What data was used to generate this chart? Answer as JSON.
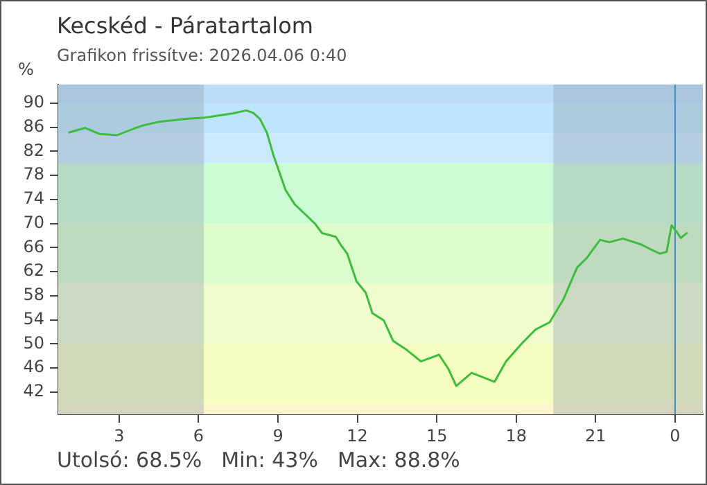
{
  "chart_data": {
    "type": "line",
    "title": "Kecskéd - Páratartalom",
    "subtitle": "Grafikon frissítve: 2026.04.06 0:40",
    "ylabel": "%",
    "x": [
      "2026-04-05T01:05",
      "2026-04-05T01:43",
      "2026-04-05T02:15",
      "2026-04-05T02:56",
      "2026-04-05T03:38",
      "2026-04-05T03:59",
      "2026-04-05T04:30",
      "2026-04-05T05:32",
      "2026-04-05T06:14",
      "2026-04-05T07:17",
      "2026-04-05T07:48",
      "2026-04-05T08:04",
      "2026-04-05T08:19",
      "2026-04-05T08:35",
      "2026-04-05T08:50",
      "2026-04-05T09:01",
      "2026-04-05T09:17",
      "2026-04-05T09:38",
      "2026-04-05T09:58",
      "2026-04-05T10:25",
      "2026-04-05T10:40",
      "2026-04-05T11:11",
      "2026-04-05T11:22",
      "2026-04-05T11:37",
      "2026-04-05T11:58",
      "2026-04-05T12:19",
      "2026-04-05T12:34",
      "2026-04-05T13:00",
      "2026-04-05T13:21",
      "2026-04-05T13:52",
      "2026-04-05T14:24",
      "2026-04-05T15:05",
      "2026-04-05T15:26",
      "2026-04-05T15:44",
      "2026-04-05T16:19",
      "2026-04-05T17:11",
      "2026-04-05T17:37",
      "2026-04-05T18:13",
      "2026-04-05T18:44",
      "2026-04-05T19:16",
      "2026-04-05T19:47",
      "2026-04-05T20:18",
      "2026-04-05T20:39",
      "2026-04-05T21:10",
      "2026-04-05T21:31",
      "2026-04-05T22:02",
      "2026-04-05T22:44",
      "2026-04-05T23:05",
      "2026-04-05T23:26",
      "2026-04-05T23:41",
      "2026-04-05T23:52",
      "2026-04-06T00:02",
      "2026-04-06T00:13",
      "2026-04-06T00:28"
    ],
    "series": [
      {
        "color": "#3cbe3c",
        "values": [
          85.1,
          85.9,
          84.9,
          84.7,
          85.9,
          86.4,
          86.9,
          87.4,
          87.6,
          88.3,
          88.8,
          88.4,
          87.4,
          85.1,
          81.3,
          79.0,
          75.6,
          73.2,
          71.8,
          69.9,
          68.4,
          67.8,
          66.5,
          65.0,
          60.4,
          58.5,
          55.1,
          53.9,
          50.5,
          49.0,
          47.1,
          48.2,
          45.9,
          43.0,
          45.2,
          43.7,
          47.1,
          50.1,
          52.4,
          53.6,
          57.4,
          62.7,
          64.2,
          67.3,
          66.9,
          67.5,
          66.5,
          65.7,
          65.0,
          65.3,
          69.7,
          68.8,
          67.6,
          68.5
        ]
      }
    ],
    "xlim": [
      "2026-04-05T00:42",
      "2026-04-06T01:03"
    ],
    "ylim": [
      38.3,
      93.1
    ],
    "xticks": [
      {
        "value": "2026-04-05T03:00",
        "label": "3"
      },
      {
        "value": "2026-04-05T06:00",
        "label": "6"
      },
      {
        "value": "2026-04-05T09:00",
        "label": "9"
      },
      {
        "value": "2026-04-05T12:00",
        "label": "12"
      },
      {
        "value": "2026-04-05T15:00",
        "label": "15"
      },
      {
        "value": "2026-04-05T18:00",
        "label": "18"
      },
      {
        "value": "2026-04-05T21:00",
        "label": "21"
      },
      {
        "value": "2026-04-06T00:00",
        "label": "0"
      }
    ],
    "yticks": [
      42,
      46,
      50,
      54,
      58,
      62,
      66,
      70,
      74,
      78,
      82,
      86,
      90
    ],
    "grid": false,
    "legend": false,
    "marker": "none",
    "line_style": "solid",
    "bands": [
      {
        "axis": "y",
        "from": 90,
        "to": 93.1,
        "color": "#bcdcf8"
      },
      {
        "axis": "y",
        "from": 85,
        "to": 90,
        "color": "#bfe5fc"
      },
      {
        "axis": "y",
        "from": 80,
        "to": 85,
        "color": "#cbe9fd"
      },
      {
        "axis": "y",
        "from": 70,
        "to": 80,
        "color": "#cbfcd6"
      },
      {
        "axis": "y",
        "from": 60,
        "to": 70,
        "color": "#dcfccb"
      },
      {
        "axis": "y",
        "from": 50,
        "to": 60,
        "color": "#eefcce"
      },
      {
        "axis": "y",
        "from": 40,
        "to": 50,
        "color": "#f5fcc0"
      },
      {
        "axis": "y",
        "from": 38.3,
        "to": 40,
        "color": "#fdf6cc"
      },
      {
        "axis": "x",
        "from": "2026-04-05T00:42",
        "to": "2026-04-05T06:12",
        "color": "#8c9aa8"
      },
      {
        "axis": "x",
        "from": "2026-04-05T19:24",
        "to": "2026-04-06T01:03",
        "color": "#8c9aa8"
      }
    ],
    "ref_lines": [
      {
        "axis": "x",
        "value": "2026-04-06T00:00",
        "color": "#3a8fd0"
      }
    ],
    "annotations": [
      "Utolsó: 68.5%",
      "Min: 43%",
      "Max: 88.8%"
    ]
  }
}
